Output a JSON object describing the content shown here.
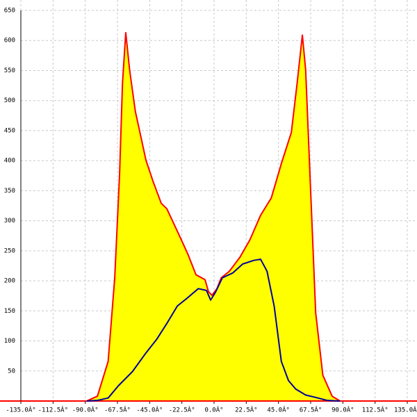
{
  "chart_data": {
    "type": "area",
    "xlim": [
      -135,
      135
    ],
    "ylim": [
      0,
      650
    ],
    "xticks": [
      {
        "value": -135,
        "label": "-135.0Â°"
      },
      {
        "value": -112.5,
        "label": "-112.5Â°"
      },
      {
        "value": -90,
        "label": "-90.0Â°"
      },
      {
        "value": -67.5,
        "label": "-67.5Â°"
      },
      {
        "value": -45,
        "label": "-45.0Â°"
      },
      {
        "value": -22.5,
        "label": "-22.5Â°"
      },
      {
        "value": 0,
        "label": "0.0Â°"
      },
      {
        "value": 22.5,
        "label": "22.5Â°"
      },
      {
        "value": 45,
        "label": "45.0Â°"
      },
      {
        "value": 67.5,
        "label": "67.5Â°"
      },
      {
        "value": 90,
        "label": "90.0Â°"
      },
      {
        "value": 112.5,
        "label": "112.5Â°"
      },
      {
        "value": 135,
        "label": "135.0Â°"
      }
    ],
    "yticks": [
      50,
      100,
      150,
      200,
      250,
      300,
      350,
      400,
      450,
      500,
      550,
      600,
      650
    ],
    "grid": true,
    "series": [
      {
        "color": "#ff0000",
        "fill": "#ffff00",
        "x": [
          -89,
          -81.5,
          -74,
          -69.4,
          -66,
          -64,
          -61.7,
          -59,
          -55,
          -47.6,
          -42.7,
          -36.9,
          -33,
          -24,
          -18.4,
          -12.6,
          -6.3,
          -3.9,
          -1.5,
          2,
          5,
          10.7,
          18,
          25,
          32.5,
          40,
          47,
          54,
          58,
          61.7,
          64,
          68,
          71,
          76,
          82.5,
          88
        ],
        "values": [
          0,
          8,
          66,
          205,
          378,
          528,
          613,
          551,
          482,
          401,
          366,
          329,
          320,
          274,
          245,
          210,
          202,
          182,
          176,
          187,
          205,
          216,
          239,
          268,
          309,
          338,
          395,
          447,
          528,
          609,
          551,
          320,
          147,
          43,
          8,
          0
        ]
      },
      {
        "color": "#000099",
        "x": [
          -89,
          -81.5,
          -74,
          -67,
          -57,
          -47.6,
          -40,
          -33,
          -25.7,
          -18.4,
          -11,
          -5.3,
          -2.4,
          1,
          5.8,
          13,
          20,
          27.7,
          32.5,
          37,
          42,
          47,
          52,
          57,
          64,
          71,
          79,
          88
        ],
        "values": [
          0,
          1,
          5,
          25,
          49,
          80,
          103,
          129,
          158,
          172,
          187,
          184,
          168,
          181,
          205,
          213,
          228,
          234,
          236,
          216,
          158,
          66,
          34,
          20,
          10,
          6,
          1,
          0
        ]
      }
    ]
  }
}
